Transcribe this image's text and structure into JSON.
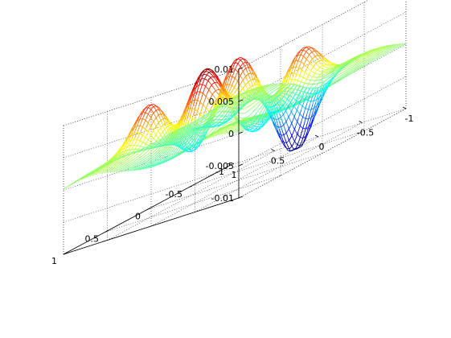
{
  "chart_data": {
    "type": "surface-mesh",
    "title": "",
    "xlabel": "",
    "ylabel": "",
    "zlabel": "",
    "colormap": "jet",
    "grid": true,
    "x_range": [
      -1,
      1
    ],
    "y_range": [
      -1,
      1
    ],
    "z_range": [
      -0.01,
      0.01
    ],
    "x_ticks": [
      "1",
      "0.5",
      "0",
      "-0.5",
      "-1"
    ],
    "y_ticks": [
      "1",
      "0.5",
      "0",
      "-0.5",
      "-1"
    ],
    "z_ticks": [
      "0.01",
      "0.005",
      "0",
      "-0.005",
      "-0.01"
    ],
    "z_tick_values": [
      0.01,
      0.005,
      0,
      -0.005,
      -0.01
    ],
    "x_tick_values": [
      1,
      0.5,
      0,
      -0.5,
      -1
    ],
    "y_tick_values": [
      1,
      0.5,
      0,
      -0.5,
      -1
    ],
    "surface_peaks": [
      {
        "x": 0.62,
        "y": 0.35,
        "z": 0.0075
      },
      {
        "x": 0.25,
        "y": -0.3,
        "z": 0.0082
      },
      {
        "x": -0.05,
        "y": 0.4,
        "z": 0.0085
      },
      {
        "x": -0.55,
        "y": -0.25,
        "z": 0.0072
      },
      {
        "x": 0.15,
        "y": 0.2,
        "z": 0.006
      }
    ],
    "surface_troughs": [
      {
        "x": 0.0,
        "y": -0.72,
        "z": -0.0095
      },
      {
        "x": 0.4,
        "y": 0.05,
        "z": -0.004
      },
      {
        "x": -0.3,
        "y": 0.1,
        "z": -0.0035
      },
      {
        "x": 0.7,
        "y": -0.6,
        "z": -0.003
      }
    ]
  }
}
